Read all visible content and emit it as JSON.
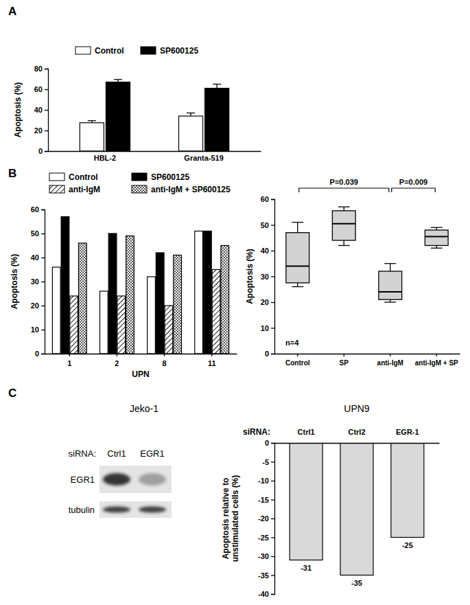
{
  "chart_data": [
    {
      "type": "bar",
      "panel_label": "A",
      "y_label": "Apoptosis (%)",
      "categories": [
        "HBL-2",
        "Granta-519"
      ],
      "series": [
        {
          "name": "Control",
          "color": "#ffffff",
          "values": [
            27.5,
            34
          ],
          "errors": [
            2,
            3
          ]
        },
        {
          "name": "SP600125",
          "color": "#000000",
          "values": [
            67,
            61
          ],
          "errors": [
            2.5,
            4
          ]
        }
      ],
      "ylim": [
        0,
        80
      ],
      "yticks": [
        0,
        20,
        40,
        60,
        80
      ],
      "legend": "top"
    },
    {
      "type": "bar",
      "panel_label": "B",
      "y_label": "Apoptosis (%)",
      "x_label": "UPN",
      "categories": [
        "1",
        "2",
        "8",
        "11"
      ],
      "series": [
        {
          "name": "Control",
          "color": "#ffffff",
          "values": [
            36,
            26,
            32,
            51
          ]
        },
        {
          "name": "SP600125",
          "color": "#000000",
          "values": [
            57,
            50,
            42,
            51
          ]
        },
        {
          "name": "anti-IgM",
          "color": "#000000",
          "values": [
            24,
            24,
            20,
            35
          ]
        },
        {
          "name": "anti-IgM + SP600125",
          "color": "#555555",
          "values": [
            46,
            49,
            41,
            45
          ]
        }
      ],
      "ylim": [
        0,
        60
      ],
      "yticks": [
        0,
        10,
        20,
        30,
        40,
        50,
        60
      ],
      "legend": "top"
    },
    {
      "type": "box",
      "y_label": "Apoptosis (%)",
      "categories": [
        "Control",
        "SP",
        "anti-IgM",
        "anti-IgM + SP"
      ],
      "stats": {
        "min": [
          26,
          42,
          20,
          41
        ],
        "q1": [
          27.5,
          44,
          21,
          42
        ],
        "median": [
          34,
          50.5,
          24,
          45.5
        ],
        "q3": [
          47,
          55.5,
          32,
          48
        ],
        "max": [
          51,
          57,
          35,
          49
        ]
      },
      "color": "#d3d3d3",
      "ylim": [
        0,
        60
      ],
      "yticks": [
        0,
        10,
        20,
        30,
        40,
        50,
        60
      ],
      "annotations": [
        {
          "text": "P=0.039",
          "from": "Control",
          "to": "anti-IgM"
        },
        {
          "text": "P=0.009",
          "from": "anti-IgM",
          "to": "anti-IgM + SP"
        },
        {
          "text": "n=4"
        }
      ]
    },
    {
      "type": "bar",
      "panel_label": "C",
      "title": "UPN9",
      "x_label": "siRNA:",
      "y_label": "Apoptosis relative to\nunstimulated cells (%)",
      "categories": [
        "Ctrl1",
        "Ctrl2",
        "EGR-1"
      ],
      "values": [
        -31,
        -35,
        -25
      ],
      "color": "#d9d9d9",
      "ylim": [
        -40,
        0
      ],
      "yticks": [
        0,
        -5,
        -10,
        -15,
        -20,
        -25,
        -30,
        -35,
        -40
      ],
      "data_labels": true
    }
  ],
  "blot": {
    "title": "Jeko-1",
    "lane_header": "siRNA:",
    "lanes": [
      "Ctrl1",
      "EGR1"
    ],
    "rows": [
      "EGR1",
      "tubulin"
    ]
  }
}
